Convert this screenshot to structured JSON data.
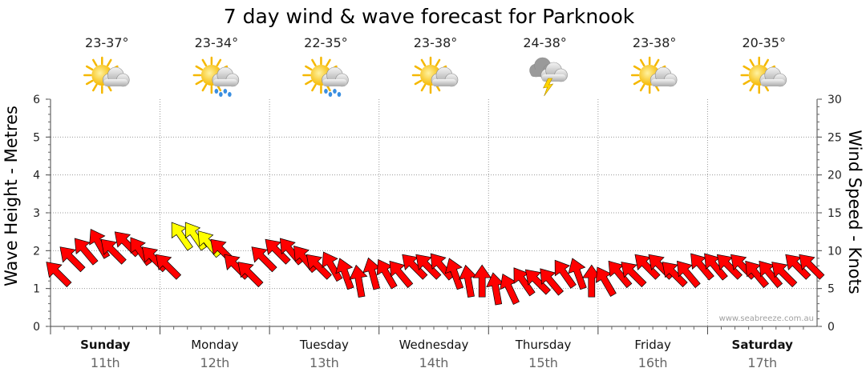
{
  "chart_data": {
    "type": "line",
    "title": "7 day wind & wave forecast for Parknook",
    "ylabel_left": "Wave Height - Metres",
    "ylabel_right": "Wind Speed - Knots",
    "ylim_left": [
      0,
      6
    ],
    "ylim_right": [
      0,
      30
    ],
    "yticks_left": [
      "0",
      "1",
      "2",
      "3",
      "4",
      "5",
      "6"
    ],
    "yticks_right": [
      "0",
      "5",
      "10",
      "15",
      "20",
      "25",
      "30"
    ],
    "grid": true,
    "credit": "www.seabreeze.com.au",
    "days": [
      {
        "day": "Sunday",
        "date": "11th",
        "temp": "23-37°",
        "icon": "sun-cloud-icon",
        "bold": true
      },
      {
        "day": "Monday",
        "date": "12th",
        "temp": "23-34°",
        "icon": "sun-cloud-rain-icon",
        "bold": false
      },
      {
        "day": "Tuesday",
        "date": "13th",
        "temp": "22-35°",
        "icon": "sun-cloud-rain-icon",
        "bold": false
      },
      {
        "day": "Wednesday",
        "date": "14th",
        "temp": "23-38°",
        "icon": "sun-cloud-icon",
        "bold": false
      },
      {
        "day": "Thursday",
        "date": "15th",
        "temp": "24-38°",
        "icon": "storm-icon",
        "bold": false
      },
      {
        "day": "Friday",
        "date": "16th",
        "temp": "23-38°",
        "icon": "sun-cloud-icon",
        "bold": false
      },
      {
        "day": "Saturday",
        "date": "17th",
        "temp": "20-35°",
        "icon": "sun-cloud-icon",
        "bold": true
      }
    ],
    "wind_series": {
      "name": "Wind Speed (knots)",
      "x_hours": [
        0,
        3,
        6,
        9,
        12,
        15,
        18,
        21,
        24,
        27,
        30,
        33,
        36,
        39,
        42,
        45,
        48,
        51,
        54,
        57,
        60,
        63,
        66,
        69,
        72,
        75,
        78,
        81,
        84,
        87,
        90,
        93,
        96,
        99,
        102,
        105,
        108,
        111,
        114,
        117,
        120,
        123,
        126,
        129,
        132,
        135,
        138,
        141,
        144,
        147,
        150,
        153,
        156,
        159,
        162,
        165
      ],
      "knots": [
        7,
        9,
        10,
        11,
        10,
        11,
        10,
        9,
        8,
        12,
        12,
        11,
        10,
        8,
        7,
        9,
        10,
        10,
        9,
        8,
        8,
        7,
        6,
        7,
        7,
        7,
        8,
        8,
        8,
        7,
        6,
        6,
        5,
        5,
        6,
        6,
        6,
        7,
        7,
        6,
        6,
        7,
        7,
        8,
        8,
        7,
        7,
        8,
        8,
        8,
        8,
        7,
        7,
        7,
        8,
        8
      ],
      "direction_deg": [
        225,
        225,
        230,
        240,
        225,
        225,
        235,
        225,
        225,
        235,
        235,
        230,
        225,
        225,
        225,
        225,
        225,
        230,
        230,
        225,
        240,
        250,
        260,
        255,
        240,
        230,
        225,
        225,
        230,
        250,
        260,
        270,
        260,
        245,
        235,
        225,
        230,
        235,
        250,
        270,
        240,
        230,
        225,
        225,
        225,
        225,
        230,
        230,
        230,
        225,
        225,
        230,
        230,
        225,
        225,
        225
      ],
      "highlight": [
        false,
        false,
        false,
        false,
        false,
        false,
        false,
        false,
        false,
        true,
        true,
        true,
        false,
        false,
        false,
        false,
        false,
        false,
        false,
        false,
        false,
        false,
        false,
        false,
        false,
        false,
        false,
        false,
        false,
        false,
        false,
        false,
        false,
        false,
        false,
        false,
        false,
        false,
        false,
        false,
        false,
        false,
        false,
        false,
        false,
        false,
        false,
        false,
        false,
        false,
        false,
        false,
        false,
        false,
        false,
        false
      ]
    },
    "colors": {
      "arrow": "#ff0000",
      "arrow_highlight": "#ffff00",
      "arrow_stroke": "#000000",
      "grid": "#999999",
      "sun": "#f5b800",
      "cloud": "#c8c8c8",
      "rain": "#3a8ee0",
      "bolt": "#ffd400"
    }
  }
}
